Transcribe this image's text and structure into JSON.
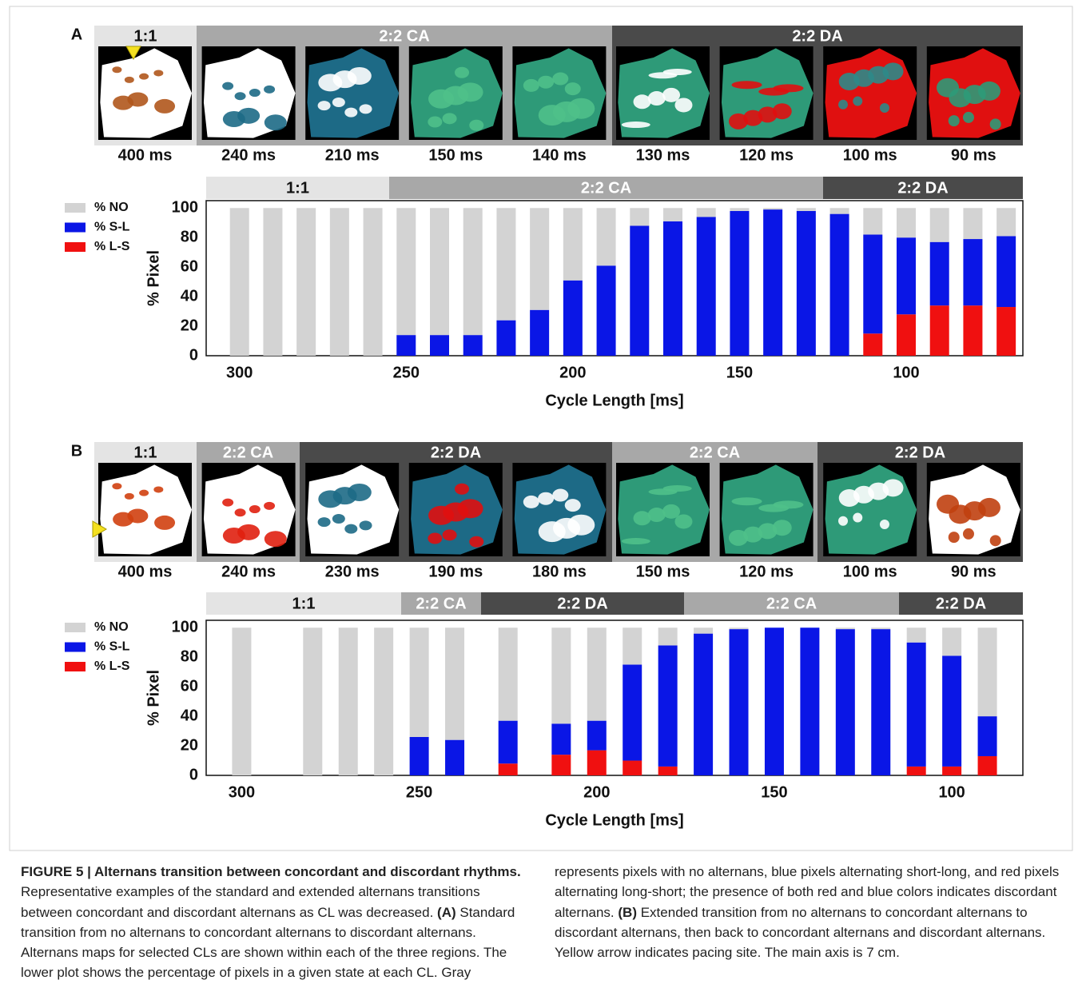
{
  "panels": [
    {
      "label": "A",
      "map_regions": [
        {
          "label": "1:1",
          "color": "#e4e4e4",
          "text_color": "#111111"
        },
        {
          "label": "2:2 CA",
          "color": "#a8a8a8",
          "text_color": "#ffffff"
        },
        {
          "label": "2:2 DA",
          "color": "#4a4a4a",
          "text_color": "#ffffff"
        }
      ],
      "maps": [
        "400 ms",
        "240 ms",
        "210 ms",
        "150 ms",
        "140 ms",
        "130 ms",
        "120 ms",
        "100 ms",
        "90 ms"
      ]
    },
    {
      "label": "B",
      "map_regions": [
        {
          "label": "1:1",
          "color": "#e4e4e4",
          "text_color": "#111111"
        },
        {
          "label": "2:2 CA",
          "color": "#a8a8a8",
          "text_color": "#ffffff"
        },
        {
          "label": "2:2 DA",
          "color": "#4a4a4a",
          "text_color": "#ffffff"
        },
        {
          "label": "2:2 CA",
          "color": "#a8a8a8",
          "text_color": "#ffffff"
        },
        {
          "label": "2:2 DA",
          "color": "#4a4a4a",
          "text_color": "#ffffff"
        }
      ],
      "maps": [
        "400 ms",
        "240 ms",
        "230 ms",
        "190 ms",
        "180 ms",
        "150 ms",
        "120 ms",
        "100 ms",
        "90 ms"
      ]
    }
  ],
  "chart_data": [
    {
      "type": "stacked_bar",
      "x_label": "Cycle Length [ms]",
      "y_label": "% Pixel",
      "regions": [
        {
          "label": "1:1",
          "color": "#e4e4e4",
          "text_color": "#111111"
        },
        {
          "label": "2:2 CA",
          "color": "#a8a8a8",
          "text_color": "#ffffff"
        },
        {
          "label": "2:2 DA",
          "color": "#4a4a4a",
          "text_color": "#ffffff"
        }
      ],
      "x": [
        300,
        290,
        280,
        270,
        260,
        250,
        240,
        230,
        220,
        210,
        200,
        190,
        180,
        170,
        160,
        150,
        140,
        130,
        120,
        110,
        100,
        90,
        80,
        70
      ],
      "series": [
        {
          "name": "% NO",
          "color": "#d3d3d3",
          "values": [
            100,
            100,
            100,
            100,
            100,
            86,
            86,
            86,
            76,
            69,
            49,
            39,
            12,
            9,
            6,
            2,
            1,
            2,
            4,
            18,
            20,
            23,
            21,
            19
          ]
        },
        {
          "name": "% S-L",
          "color": "#0a16e6",
          "values": [
            0,
            0,
            0,
            0,
            0,
            14,
            14,
            14,
            24,
            31,
            51,
            61,
            88,
            91,
            94,
            98,
            99,
            98,
            96,
            67,
            52,
            43,
            45,
            48
          ]
        },
        {
          "name": "% L-S",
          "color": "#f01010",
          "values": [
            0,
            0,
            0,
            0,
            0,
            0,
            0,
            0,
            0,
            0,
            0,
            0,
            0,
            0,
            0,
            0,
            0,
            0,
            0,
            15,
            28,
            34,
            34,
            33
          ]
        }
      ],
      "xlim": [
        310,
        65
      ],
      "xticks": [
        300,
        250,
        200,
        150,
        100
      ],
      "ylim": [
        0,
        105
      ],
      "yticks": [
        0,
        20,
        40,
        60,
        80,
        100
      ]
    },
    {
      "type": "stacked_bar",
      "x_label": "Cycle Length [ms]",
      "y_label": "% Pixel",
      "regions": [
        {
          "label": "1:1",
          "color": "#e4e4e4",
          "text_color": "#111111"
        },
        {
          "label": "2:2 CA",
          "color": "#a8a8a8",
          "text_color": "#ffffff"
        },
        {
          "label": "2:2 DA",
          "color": "#4a4a4a",
          "text_color": "#ffffff"
        },
        {
          "label": "2:2 CA",
          "color": "#a8a8a8",
          "text_color": "#ffffff"
        },
        {
          "label": "2:2 DA",
          "color": "#4a4a4a",
          "text_color": "#ffffff"
        }
      ],
      "x": [
        300,
        280,
        270,
        260,
        250,
        240,
        225,
        210,
        200,
        190,
        180,
        170,
        160,
        150,
        140,
        130,
        120,
        110,
        100,
        90
      ],
      "series": [
        {
          "name": "% NO",
          "color": "#d3d3d3",
          "values": [
            100,
            100,
            100,
            100,
            74,
            76,
            63,
            65,
            63,
            25,
            12,
            4,
            1,
            0,
            0,
            1,
            1,
            10,
            19,
            60
          ]
        },
        {
          "name": "% S-L",
          "color": "#0a16e6",
          "values": [
            0,
            0,
            0,
            0,
            26,
            24,
            29,
            21,
            20,
            65,
            82,
            96,
            99,
            100,
            100,
            99,
            99,
            84,
            75,
            27
          ]
        },
        {
          "name": "% L-S",
          "color": "#f01010",
          "values": [
            0,
            0,
            0,
            0,
            0,
            0,
            8,
            14,
            17,
            10,
            6,
            0,
            0,
            0,
            0,
            0,
            0,
            6,
            6,
            13
          ]
        }
      ],
      "xlim": [
        310,
        80
      ],
      "xticks": [
        300,
        250,
        200,
        150,
        100
      ],
      "ylim": [
        0,
        105
      ],
      "yticks": [
        0,
        20,
        40,
        60,
        80,
        100
      ]
    }
  ],
  "caption": {
    "heading": "FIGURE 5 | Alternans transition between concordant and discordant rhythms.",
    "runs": [
      {
        "text": " Representative examples of the standard and extended alternans transitions between concordant and discordant alternans as CL was decreased. ",
        "bold": false
      },
      {
        "text": "(A)",
        "bold": true
      },
      {
        "text": " Standard transition from no alternans to concordant alternans to discordant alternans. Alternans maps for selected CLs are shown within each of the three regions. The lower plot shows the percentage of pixels in a given state at each CL. Gray represents pixels with no alternans, blue pixels alternating short-long, and red pixels alternating long-short; the presence of both red and blue colors indicates discordant alternans. ",
        "bold": false
      },
      {
        "text": "(B)",
        "bold": true
      },
      {
        "text": " Extended transition from no alternans to concordant alternans to discordant alternans, then back to concordant alternans and discordant alternans. Yellow arrow indicates pacing site. The main axis is 7 cm.",
        "bold": false
      }
    ]
  }
}
